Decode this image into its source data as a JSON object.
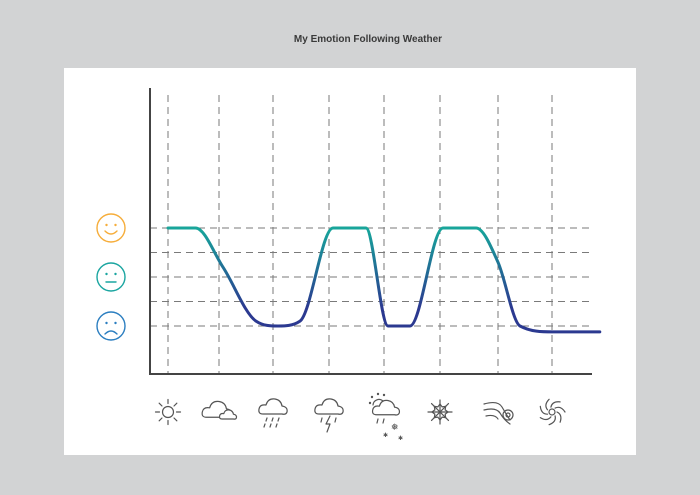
{
  "title": "My Emotion Following Weather",
  "colors": {
    "background": "#d2d3d4",
    "panel": "#ffffff",
    "happy": "#f6ad3a",
    "neutral": "#1aa5a0",
    "sad": "#2b7ec0",
    "line_top": "#f6ad3a",
    "line_mid": "#17a59b",
    "line_bottom": "#2b3990",
    "grid": "#7a7a7a",
    "axis": "#444444",
    "icon": "#555555"
  },
  "chart_data": {
    "type": "line",
    "title": "My Emotion Following Weather",
    "y_levels": [
      {
        "level": 0,
        "icon": "sad-face-icon"
      },
      {
        "level": 1,
        "icon": "neutral-face-icon"
      },
      {
        "level": 2,
        "icon": "happy-face-icon"
      }
    ],
    "x_categories": [
      {
        "icon": "sun-icon"
      },
      {
        "icon": "cloudy-icon"
      },
      {
        "icon": "rain-icon"
      },
      {
        "icon": "thunderstorm-icon"
      },
      {
        "icon": "mixed-weather-icon"
      },
      {
        "icon": "snowflake-icon"
      },
      {
        "icon": "wind-icon"
      },
      {
        "icon": "hurricane-icon"
      }
    ],
    "series": [
      {
        "x": [
          0,
          0.5,
          1.0,
          1.6,
          2.0,
          2.4,
          3.0,
          3.6,
          4.0,
          4.4,
          5.0,
          5.6,
          6.0,
          6.4,
          7.0,
          7.85
        ],
        "y": [
          2.0,
          2.0,
          1.2,
          0.1,
          0.0,
          0.1,
          2.0,
          2.0,
          0.0,
          0.0,
          2.0,
          2.0,
          1.3,
          0.0,
          -0.12,
          -0.12
        ]
      }
    ],
    "ylim": [
      -0.5,
      2.5
    ],
    "grid": true,
    "legend": "none"
  }
}
